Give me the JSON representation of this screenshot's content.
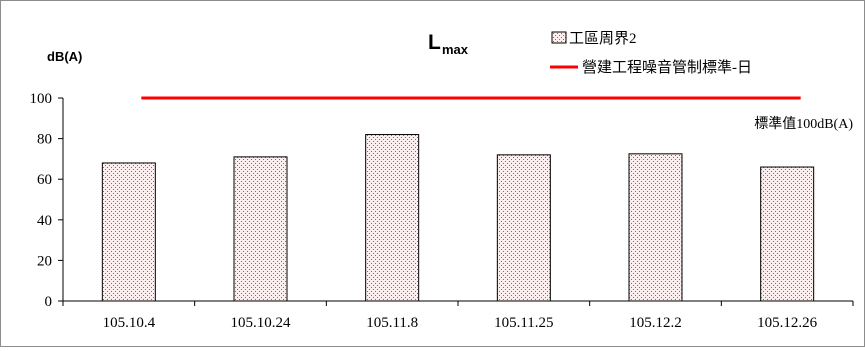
{
  "chart_data": {
    "type": "bar",
    "title": "L",
    "title_subscript": "max",
    "ylabel": "dB(A)",
    "xlabel": "",
    "categories": [
      "105.10.4",
      "105.10.24",
      "105.11.8",
      "105.11.25",
      "105.12.2",
      "105.12.26"
    ],
    "series": [
      {
        "name": "工區周界2",
        "type": "bar",
        "values": [
          68,
          71,
          82,
          72,
          72.5,
          66
        ],
        "fill": "#fbeeee",
        "dot_color": "#c0504d",
        "border": "#000000"
      },
      {
        "name": "營建工程噪音管制標準-日",
        "type": "line",
        "values": [
          100,
          100,
          100,
          100,
          100,
          100
        ],
        "color": "#ff0000"
      }
    ],
    "annotation": "標準值100dB(A)",
    "ylim": [
      0,
      100
    ],
    "yticks": [
      0,
      20,
      40,
      60,
      80,
      100
    ],
    "grid": false,
    "legend_position": "top-right"
  }
}
